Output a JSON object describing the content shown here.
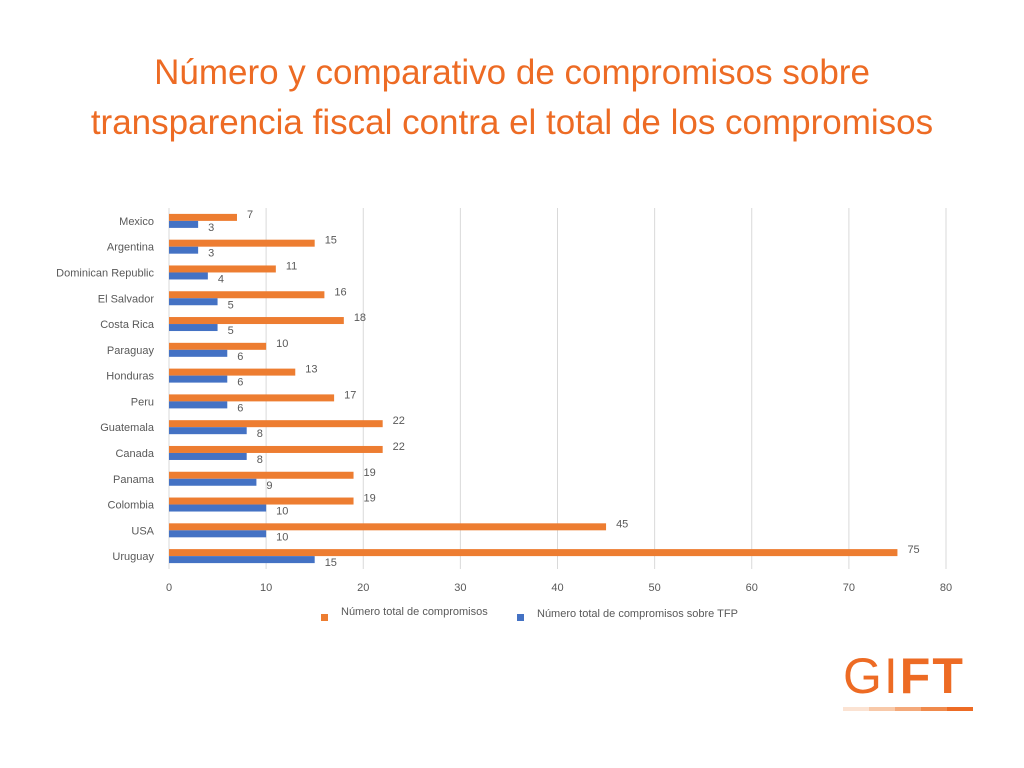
{
  "title": {
    "line1": "Número y comparativo de compromisos sobre",
    "line2": "transparencia fiscal contra el total de los compromisos"
  },
  "logo": {
    "thin": "GI",
    "bold": "FT"
  },
  "colors": {
    "title": "#ED6B24",
    "series_total": "#ED7D31",
    "series_tfp": "#4472C4",
    "grid": "#D9D9D9",
    "text": "#595959"
  },
  "chart_data": {
    "type": "bar",
    "orientation": "horizontal",
    "categories": [
      "Mexico",
      "Argentina",
      "Dominican Republic",
      "El Salvador",
      "Costa Rica",
      "Paraguay",
      "Honduras",
      "Peru",
      "Guatemala",
      "Canada",
      "Panama",
      "Colombia",
      "USA",
      "Uruguay"
    ],
    "series": [
      {
        "name": "Número total de compromisos",
        "values": [
          7,
          15,
          11,
          16,
          18,
          10,
          13,
          17,
          22,
          22,
          19,
          19,
          45,
          75
        ]
      },
      {
        "name": "Número total de compromisos sobre TFP",
        "values": [
          3,
          3,
          4,
          5,
          5,
          6,
          6,
          6,
          8,
          8,
          9,
          10,
          10,
          15
        ]
      }
    ],
    "xlim": [
      0,
      80
    ],
    "xticks": [
      0,
      10,
      20,
      30,
      40,
      50,
      60,
      70,
      80
    ],
    "grid": true,
    "legend": "bottom",
    "data_labels": true
  }
}
